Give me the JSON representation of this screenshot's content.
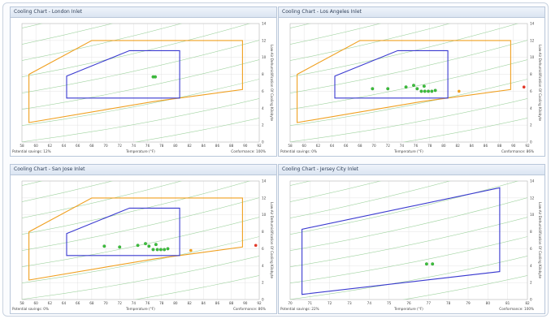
{
  "colors": {
    "grid": "#e4e4e4",
    "curve": "#9fd39f",
    "recommended": "#3a3ad0",
    "allowable": "#f0a020",
    "point": "#3cbf3c",
    "point_alert": "#e23a2a",
    "point_warn": "#f0a020"
  },
  "chart_data": [
    {
      "type": "scatter",
      "title": "Cooling Chart - London Inlet",
      "xlabel": "Temperature (°F)",
      "ylabel": "Low-Air Dehumidification Of Cooling Kilobyte",
      "xlim": [
        58,
        92
      ],
      "ylim": [
        0,
        14
      ],
      "x_ticks": [
        "58",
        "60",
        "62",
        "64",
        "66",
        "68",
        "70",
        "72",
        "74",
        "76",
        "78",
        "80",
        "82",
        "84",
        "86",
        "88",
        "90",
        "92"
      ],
      "y_ticks": [
        "0",
        "2",
        "4",
        "6",
        "8",
        "10",
        "12",
        "14"
      ],
      "footer_left": "Potential savings: 12%",
      "footer_right": "Conformance: 100%",
      "recommended_zone": [
        [
          64.4,
          5.2
        ],
        [
          64.4,
          7.8
        ],
        [
          73.4,
          10.8
        ],
        [
          80.6,
          10.8
        ],
        [
          80.6,
          5.2
        ]
      ],
      "allowable_zone": [
        [
          59,
          2.3
        ],
        [
          59,
          8
        ],
        [
          68,
          12
        ],
        [
          89.6,
          12
        ],
        [
          89.6,
          6.2
        ],
        [
          77,
          4.8
        ]
      ],
      "points": [
        {
          "x": 76.8,
          "y": 7.7,
          "status": "ok"
        },
        {
          "x": 77.1,
          "y": 7.7,
          "status": "ok"
        }
      ]
    },
    {
      "type": "scatter",
      "title": "Cooling Chart - Los Angeles Inlet",
      "xlabel": "Temperature (°F)",
      "ylabel": "Low-Air Dehumidification Of Cooling Kilobyte",
      "xlim": [
        58,
        92
      ],
      "ylim": [
        0,
        14
      ],
      "x_ticks": [
        "58",
        "60",
        "62",
        "64",
        "66",
        "68",
        "70",
        "72",
        "74",
        "76",
        "78",
        "80",
        "82",
        "84",
        "86",
        "88",
        "90",
        "92"
      ],
      "y_ticks": [
        "0",
        "2",
        "4",
        "6",
        "8",
        "10",
        "12",
        "14"
      ],
      "footer_left": "Potential savings: 0%",
      "footer_right": "Conformance: 86%",
      "recommended_zone": [
        [
          64.4,
          5.2
        ],
        [
          64.4,
          7.8
        ],
        [
          73.4,
          10.8
        ],
        [
          80.6,
          10.8
        ],
        [
          80.6,
          5.2
        ]
      ],
      "allowable_zone": [
        [
          59,
          2.3
        ],
        [
          59,
          8
        ],
        [
          68,
          12
        ],
        [
          89.6,
          12
        ],
        [
          89.6,
          6.2
        ],
        [
          77,
          4.8
        ]
      ],
      "points": [
        {
          "x": 69.8,
          "y": 6.3,
          "status": "ok"
        },
        {
          "x": 72,
          "y": 6.3,
          "status": "ok"
        },
        {
          "x": 74.6,
          "y": 6.5,
          "status": "ok"
        },
        {
          "x": 75.7,
          "y": 6.7,
          "status": "ok"
        },
        {
          "x": 76.2,
          "y": 6.3,
          "status": "ok"
        },
        {
          "x": 76.8,
          "y": 6.0,
          "status": "ok"
        },
        {
          "x": 77.2,
          "y": 6.6,
          "status": "ok"
        },
        {
          "x": 77.3,
          "y": 6.0,
          "status": "ok"
        },
        {
          "x": 77.8,
          "y": 6.0,
          "status": "ok"
        },
        {
          "x": 78.3,
          "y": 6.0,
          "status": "ok"
        },
        {
          "x": 78.8,
          "y": 6.1,
          "status": "ok"
        },
        {
          "x": 82.2,
          "y": 6.0,
          "status": "warn"
        },
        {
          "x": 91.5,
          "y": 6.5,
          "status": "alert"
        }
      ]
    },
    {
      "type": "scatter",
      "title": "Cooling Chart - San Jose Inlet",
      "xlabel": "Temperature (°F)",
      "ylabel": "Low-Air Dehumidification Of Cooling Kilobyte",
      "xlim": [
        58,
        92
      ],
      "ylim": [
        0,
        14
      ],
      "x_ticks": [
        "58",
        "60",
        "62",
        "64",
        "66",
        "68",
        "70",
        "72",
        "74",
        "76",
        "78",
        "80",
        "82",
        "84",
        "86",
        "88",
        "90",
        "92"
      ],
      "y_ticks": [
        "0",
        "2",
        "4",
        "6",
        "8",
        "10",
        "12",
        "14"
      ],
      "footer_left": "Potential savings: 0%",
      "footer_right": "Conformance: 86%",
      "recommended_zone": [
        [
          64.4,
          5.2
        ],
        [
          64.4,
          7.8
        ],
        [
          73.4,
          10.8
        ],
        [
          80.6,
          10.8
        ],
        [
          80.6,
          5.2
        ]
      ],
      "allowable_zone": [
        [
          59,
          2.3
        ],
        [
          59,
          8
        ],
        [
          68,
          12
        ],
        [
          89.6,
          12
        ],
        [
          89.6,
          6.2
        ],
        [
          77,
          4.8
        ]
      ],
      "points": [
        {
          "x": 69.8,
          "y": 6.3,
          "status": "ok"
        },
        {
          "x": 72,
          "y": 6.2,
          "status": "ok"
        },
        {
          "x": 74.6,
          "y": 6.4,
          "status": "ok"
        },
        {
          "x": 75.7,
          "y": 6.6,
          "status": "ok"
        },
        {
          "x": 76.2,
          "y": 6.3,
          "status": "ok"
        },
        {
          "x": 76.8,
          "y": 5.9,
          "status": "ok"
        },
        {
          "x": 77.2,
          "y": 6.5,
          "status": "ok"
        },
        {
          "x": 77.4,
          "y": 5.9,
          "status": "ok"
        },
        {
          "x": 77.9,
          "y": 5.9,
          "status": "ok"
        },
        {
          "x": 78.4,
          "y": 5.9,
          "status": "ok"
        },
        {
          "x": 78.9,
          "y": 6.0,
          "status": "ok"
        },
        {
          "x": 82.2,
          "y": 5.8,
          "status": "warn"
        },
        {
          "x": 91.5,
          "y": 6.4,
          "status": "alert"
        }
      ]
    },
    {
      "type": "scatter",
      "title": "Cooling Chart - Jersey City Inlet",
      "xlabel": "Temperature (°F)",
      "ylabel": "Low-Air Dehumidification Of Cooling Kilobyte",
      "xlim": [
        70,
        82
      ],
      "ylim": [
        0,
        14
      ],
      "x_ticks": [
        "70",
        "71",
        "72",
        "73",
        "74",
        "75",
        "76",
        "77",
        "78",
        "79",
        "80",
        "81",
        "82"
      ],
      "y_ticks": [
        "0",
        "2",
        "4",
        "6",
        "8",
        "10",
        "12",
        "14"
      ],
      "footer_left": "Potential savings: 22%",
      "footer_right": "Conformance: 100%",
      "recommended_zone": [
        [
          70.6,
          0.6
        ],
        [
          70.6,
          8.3
        ],
        [
          80.6,
          13.2
        ],
        [
          80.6,
          3.3
        ]
      ],
      "allowable_zone": [],
      "points": [
        {
          "x": 76.9,
          "y": 4.2,
          "status": "ok"
        },
        {
          "x": 77.2,
          "y": 4.2,
          "status": "ok"
        }
      ]
    }
  ]
}
